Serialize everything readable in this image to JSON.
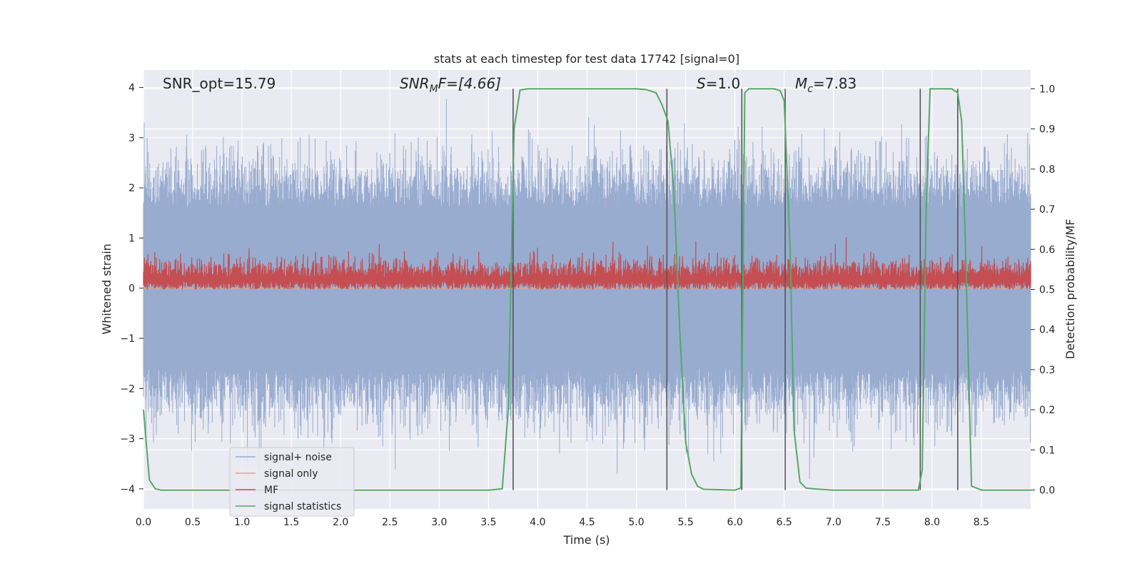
{
  "chart_data": {
    "type": "line",
    "title": "stats at each timestep for test data 17742 [signal=0]",
    "xlabel": "Time (s)",
    "ylabel": "Whitened strain",
    "y2label": "Detection probability/MF",
    "xlim": [
      0.0,
      9.0
    ],
    "ylim": [
      -4.4,
      4.35
    ],
    "y2lim": [
      -0.047,
      1.047
    ],
    "xticks": [
      "0.0",
      "0.5",
      "1.0",
      "1.5",
      "2.0",
      "2.5",
      "3.0",
      "3.5",
      "4.0",
      "4.5",
      "5.0",
      "5.5",
      "6.0",
      "6.5",
      "7.0",
      "7.5",
      "8.0",
      "8.5"
    ],
    "yticks": [
      "−4",
      "−3",
      "−2",
      "−1",
      "0",
      "1",
      "2",
      "3",
      "4"
    ],
    "y2ticks": [
      "0.0",
      "0.1",
      "0.2",
      "0.3",
      "0.4",
      "0.5",
      "0.6",
      "0.7",
      "0.8",
      "0.9",
      "1.0"
    ],
    "grid": true,
    "legend_position": "lower-left",
    "annotations": {
      "snr_opt": "SNR_opt=15.79",
      "snr_mf_main": "SNR",
      "snr_mf_sub": "M",
      "snr_mf_tail": "F=[4.66]",
      "s_main": "S",
      "s_tail": "=1.0",
      "mc_main": "M",
      "mc_sub": "c",
      "mc_tail": "=7.83"
    },
    "series": [
      {
        "name": "signal+ noise",
        "color": "#98acd0",
        "description_range": [
          -3.8,
          3.95
        ]
      },
      {
        "name": "signal only",
        "color": "#e8a387",
        "values_constant": 0.0
      },
      {
        "name": "MF",
        "color": "#c44e52",
        "axis": "secondary",
        "range": [
          0.5,
          0.63
        ]
      },
      {
        "name": "signal statistics",
        "color": "#55a868",
        "axis": "secondary",
        "x": [
          0.0,
          0.06,
          0.12,
          0.18,
          0.24,
          0.3,
          0.6,
          1.0,
          2.0,
          3.0,
          3.5,
          3.64,
          3.7,
          3.76,
          3.82,
          3.9,
          4.0,
          4.5,
          5.0,
          5.1,
          5.2,
          5.26,
          5.32,
          5.38,
          5.44,
          5.5,
          5.56,
          5.62,
          5.68,
          6.0,
          6.06,
          6.1,
          6.14,
          6.2,
          6.3,
          6.4,
          6.46,
          6.5,
          6.56,
          6.6,
          6.66,
          6.72,
          6.8,
          7.0,
          7.5,
          7.86,
          7.9,
          7.94,
          7.98,
          8.0,
          8.1,
          8.2,
          8.26,
          8.3,
          8.34,
          8.4,
          8.5,
          9.0
        ],
        "values": [
          0.2,
          0.025,
          0.003,
          0.0,
          0.0,
          0.0,
          0.0,
          0.0,
          0.0,
          0.0,
          0.0,
          0.003,
          0.2,
          0.9,
          0.997,
          1.0,
          1.0,
          1.0,
          1.0,
          0.998,
          0.99,
          0.96,
          0.92,
          0.75,
          0.4,
          0.12,
          0.04,
          0.01,
          0.002,
          0.0,
          0.005,
          0.99,
          1.0,
          1.0,
          1.0,
          1.0,
          0.995,
          0.97,
          0.6,
          0.15,
          0.02,
          0.005,
          0.003,
          0.0,
          0.0,
          0.0,
          0.05,
          0.7,
          1.0,
          1.0,
          1.0,
          1.0,
          0.99,
          0.92,
          0.6,
          0.01,
          0.0,
          0.0
        ]
      }
    ],
    "vlines_x": [
      3.75,
      5.31,
      6.07,
      6.51,
      7.88,
      8.26
    ]
  }
}
